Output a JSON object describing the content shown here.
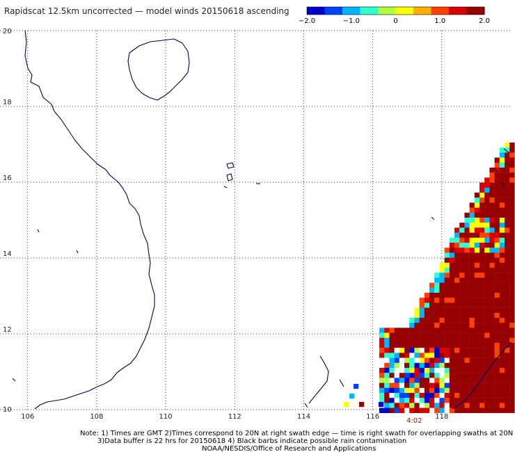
{
  "chart_data": {
    "type": "heatmap",
    "title": "Rapidscat 12.5km uncorrected — model winds 20150618 ascending",
    "colorbar": {
      "ticks": [
        "−2.0",
        "−1.0",
        "0",
        "1.0",
        "2.0"
      ],
      "range": [
        -2.0,
        2.0
      ],
      "colors": [
        "#0000c8",
        "#0040ff",
        "#00b4ff",
        "#30ffd0",
        "#b0ff40",
        "#ffff00",
        "#ffb000",
        "#ff4000",
        "#d80000",
        "#960000"
      ]
    },
    "x_ticks": [
      "106",
      "108",
      "110",
      "112",
      "114",
      "116",
      "118"
    ],
    "y_ticks": [
      "20",
      "18",
      "16",
      "14",
      "12",
      "10"
    ],
    "xlim": [
      105.2,
      120.0
    ],
    "ylim": [
      10.0,
      20.0
    ],
    "grid": true,
    "swath_time": "4:02",
    "notes": [
      "Note: 1) Times are GMT 2)Times correspond to 20N at right swath edge — time is right swath for overlapping swaths at 20N",
      "3)Data buffer is 22 hrs for 20150618 4) Black barbs indicate possible rain contamination",
      "NOAA/NESDIS/Office of Research and Applications"
    ]
  }
}
